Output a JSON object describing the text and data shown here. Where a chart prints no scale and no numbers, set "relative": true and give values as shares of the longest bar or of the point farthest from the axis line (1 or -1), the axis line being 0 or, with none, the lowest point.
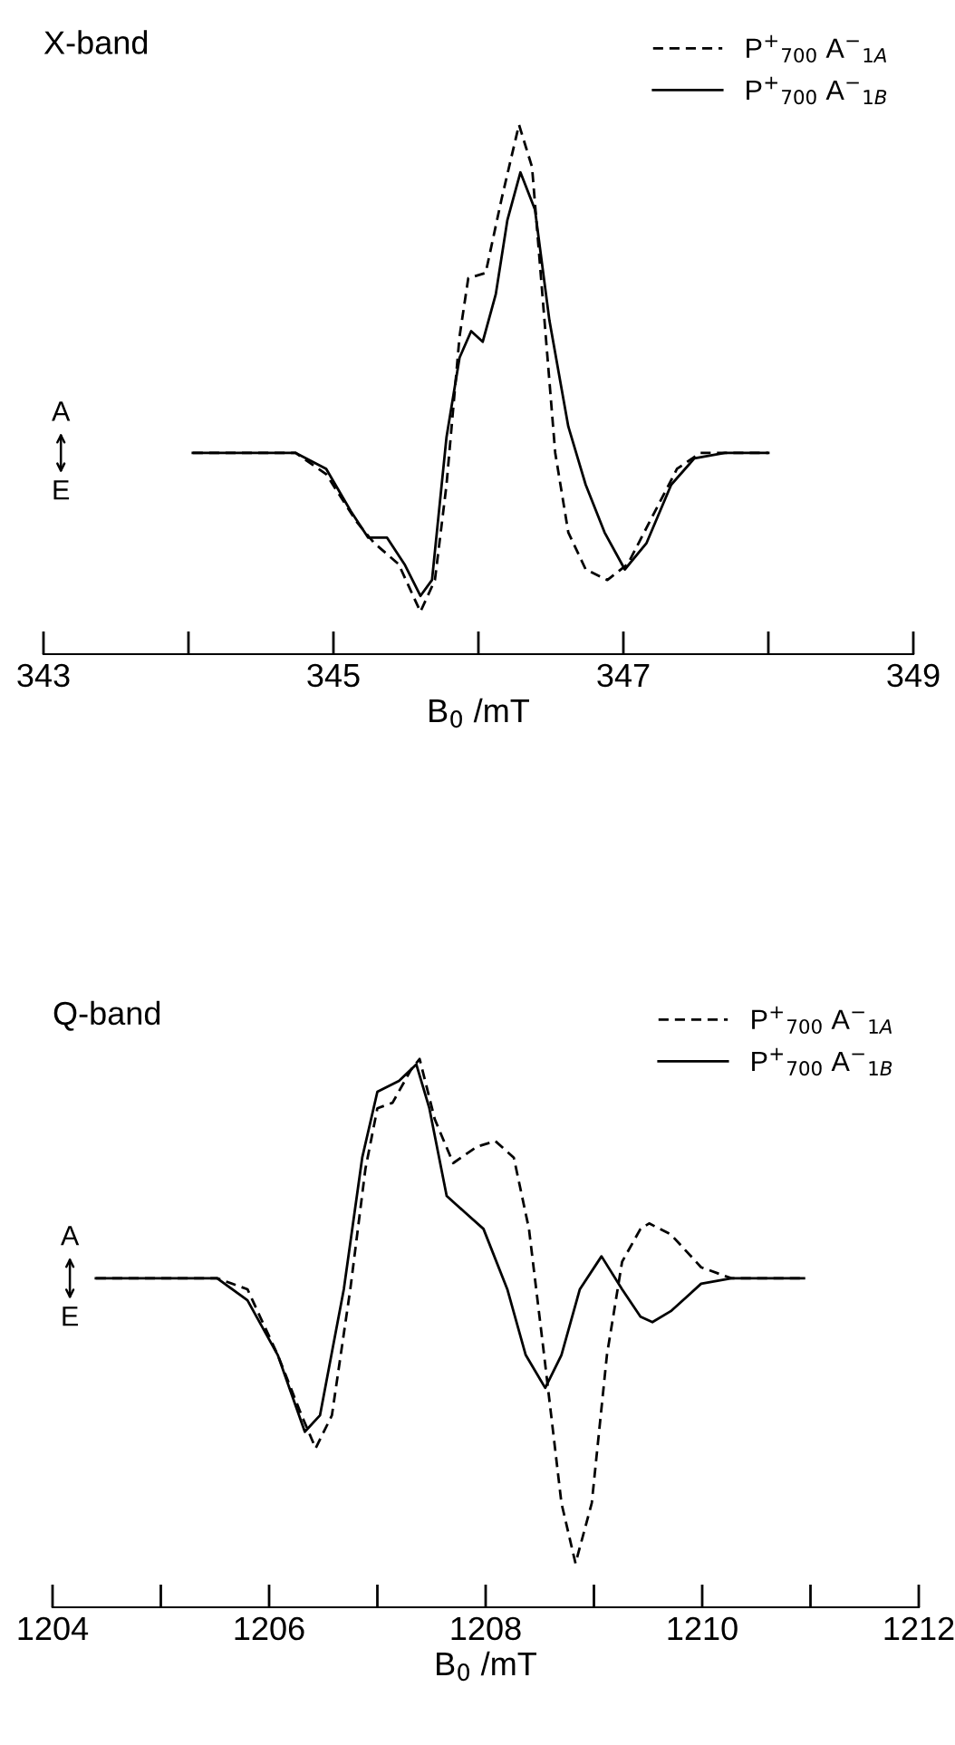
{
  "chart_data": [
    {
      "type": "line",
      "title": "X-band",
      "xlabel": "B$_{0}$ /mT",
      "relative": true,
      "legend": "top right",
      "grid": false,
      "marker": "none",
      "xlim": [
        343,
        349
      ],
      "xticks": [
        343,
        {
          "value": 344,
          "label": null
        },
        345,
        {
          "value": 346,
          "label": null
        },
        347,
        {
          "value": 348,
          "label": null
        },
        349
      ],
      "annotations": [
        "A",
        "E"
      ],
      "series": [
        {
          "name": "P$^{+}$$_{700}$ A$^{−}$$_{1A}$",
          "color": "#000000",
          "line_style": "dashed",
          "x": [
            344.03,
            344.74,
            344.95,
            345.16,
            345.28,
            345.45,
            345.6,
            345.7,
            345.78,
            345.87,
            345.93,
            346.05,
            346.16,
            346.28,
            346.37,
            346.45,
            346.53,
            346.62,
            346.74,
            346.89,
            347.03,
            347.2,
            347.37,
            347.53,
            347.7,
            348.0
          ],
          "values": [
            0.38,
            0.38,
            0.34,
            0.25,
            0.21,
            0.17,
            0.08,
            0.14,
            0.32,
            0.6,
            0.71,
            0.72,
            0.86,
            1.0,
            0.92,
            0.65,
            0.38,
            0.23,
            0.16,
            0.14,
            0.17,
            0.26,
            0.35,
            0.38,
            0.38,
            0.38
          ]
        },
        {
          "name": "P$^{+}$$_{700}$ A$^{−}$$_{1B}$",
          "color": "#000000",
          "line_style": "solid",
          "x": [
            344.03,
            344.74,
            344.95,
            345.12,
            345.24,
            345.37,
            345.49,
            345.6,
            345.68,
            345.78,
            345.87,
            345.95,
            346.03,
            346.12,
            346.2,
            346.29,
            346.39,
            346.49,
            346.62,
            346.74,
            346.87,
            347.01,
            347.16,
            347.33,
            347.49,
            347.7,
            348.0
          ],
          "values": [
            0.38,
            0.38,
            0.35,
            0.27,
            0.22,
            0.22,
            0.17,
            0.11,
            0.14,
            0.41,
            0.56,
            0.61,
            0.59,
            0.68,
            0.82,
            0.91,
            0.84,
            0.63,
            0.43,
            0.32,
            0.23,
            0.16,
            0.21,
            0.32,
            0.37,
            0.38,
            0.38
          ]
        }
      ]
    },
    {
      "type": "line",
      "title": "Q-band",
      "xlabel": "B$_{0}$ /mT",
      "relative": true,
      "legend": "top right",
      "grid": false,
      "marker": "none",
      "xlim": [
        1204,
        1212
      ],
      "xticks": [
        1204,
        {
          "value": 1205,
          "label": null
        },
        1206,
        {
          "value": 1207,
          "label": null
        },
        1208,
        {
          "value": 1209,
          "label": null
        },
        1210,
        {
          "value": 1211,
          "label": null
        },
        1212
      ],
      "annotations": [
        "A",
        "E"
      ],
      "series": [
        {
          "name": "P$^{+}$$_{700}$ A$^{−}$$_{1A}$",
          "color": "#000000",
          "line_style": "dashed",
          "x": [
            1204.4,
            1205.52,
            1205.8,
            1206.08,
            1206.3,
            1206.43,
            1206.58,
            1206.75,
            1206.89,
            1207.0,
            1207.14,
            1207.31,
            1207.39,
            1207.53,
            1207.7,
            1207.92,
            1208.09,
            1208.26,
            1208.4,
            1208.54,
            1208.7,
            1208.83,
            1208.98,
            1209.12,
            1209.26,
            1209.43,
            1209.51,
            1209.71,
            1209.99,
            1210.27,
            1210.94
          ],
          "values": [
            0.6,
            0.6,
            0.58,
            0.46,
            0.35,
            0.29,
            0.35,
            0.58,
            0.8,
            0.91,
            0.92,
            0.98,
            1.0,
            0.89,
            0.81,
            0.84,
            0.85,
            0.82,
            0.69,
            0.46,
            0.19,
            0.08,
            0.19,
            0.46,
            0.63,
            0.69,
            0.7,
            0.68,
            0.62,
            0.6,
            0.6
          ]
        },
        {
          "name": "P$^{+}$$_{700}$ A$^{−}$$_{1B}$",
          "color": "#000000",
          "line_style": "solid",
          "x": [
            1204.4,
            1205.52,
            1205.8,
            1206.08,
            1206.33,
            1206.47,
            1206.69,
            1206.86,
            1207.0,
            1207.2,
            1207.36,
            1207.48,
            1207.64,
            1207.81,
            1207.98,
            1208.2,
            1208.37,
            1208.55,
            1208.7,
            1208.87,
            1209.07,
            1209.26,
            1209.43,
            1209.54,
            1209.71,
            1209.99,
            1210.27,
            1210.94
          ],
          "values": [
            0.6,
            0.6,
            0.56,
            0.46,
            0.32,
            0.35,
            0.58,
            0.82,
            0.94,
            0.96,
            0.99,
            0.91,
            0.75,
            0.72,
            0.69,
            0.58,
            0.46,
            0.4,
            0.46,
            0.58,
            0.64,
            0.58,
            0.53,
            0.52,
            0.54,
            0.59,
            0.6,
            0.6
          ]
        }
      ]
    }
  ]
}
